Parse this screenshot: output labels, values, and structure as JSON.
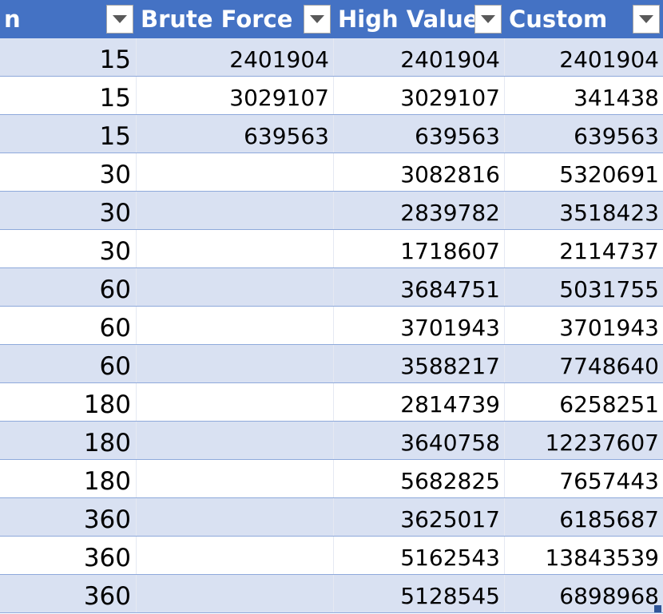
{
  "table": {
    "columns": [
      {
        "label": "n"
      },
      {
        "label": "Brute Force"
      },
      {
        "label": "High Value"
      },
      {
        "label": "Custom"
      }
    ],
    "rows": [
      [
        "15",
        "2401904",
        "2401904",
        "2401904"
      ],
      [
        "15",
        "3029107",
        "3029107",
        "341438"
      ],
      [
        "15",
        "639563",
        "639563",
        "639563"
      ],
      [
        "30",
        "",
        "3082816",
        "5320691"
      ],
      [
        "30",
        "",
        "2839782",
        "3518423"
      ],
      [
        "30",
        "",
        "1718607",
        "2114737"
      ],
      [
        "60",
        "",
        "3684751",
        "5031755"
      ],
      [
        "60",
        "",
        "3701943",
        "3701943"
      ],
      [
        "60",
        "",
        "3588217",
        "7748640"
      ],
      [
        "180",
        "",
        "2814739",
        "6258251"
      ],
      [
        "180",
        "",
        "3640758",
        "12237607"
      ],
      [
        "180",
        "",
        "5682825",
        "7657443"
      ],
      [
        "360",
        "",
        "3625017",
        "6185687"
      ],
      [
        "360",
        "",
        "5162543",
        "13843539"
      ],
      [
        "360",
        "",
        "5128545",
        "6898968"
      ]
    ]
  },
  "colors": {
    "header_bg": "#4472c4",
    "header_text": "#ffffff",
    "band_odd": "#d9e1f2",
    "band_even": "#ffffff",
    "row_border": "#8ea9db"
  },
  "icons": {
    "filter": "chevron-down-icon",
    "resize": "table-resize-handle"
  }
}
